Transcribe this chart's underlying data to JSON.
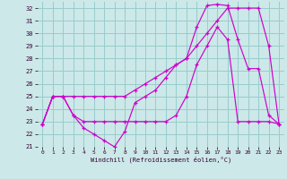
{
  "xlabel": "Windchill (Refroidissement éolien,°C)",
  "bg_color": "#cce8e8",
  "grid_color": "#99cccc",
  "line_color": "#cc00cc",
  "xlim": [
    -0.5,
    23.5
  ],
  "ylim": [
    21,
    32.5
  ],
  "yticks": [
    21,
    22,
    23,
    24,
    25,
    26,
    27,
    28,
    29,
    30,
    31,
    32
  ],
  "xticks": [
    0,
    1,
    2,
    3,
    4,
    5,
    6,
    7,
    8,
    9,
    10,
    11,
    12,
    13,
    14,
    15,
    16,
    17,
    18,
    19,
    20,
    21,
    22,
    23
  ],
  "line1_x": [
    0,
    1,
    2,
    3,
    4,
    5,
    6,
    7,
    8,
    9,
    10,
    11,
    12,
    13,
    14,
    15,
    16,
    17,
    18,
    19,
    20,
    21,
    22,
    23
  ],
  "line1_y": [
    22.8,
    25.0,
    25.0,
    23.5,
    22.5,
    22.0,
    21.5,
    21.0,
    22.2,
    24.5,
    25.0,
    25.5,
    26.5,
    27.5,
    28.0,
    30.5,
    32.2,
    32.3,
    32.2,
    29.5,
    27.2,
    27.2,
    23.5,
    22.8
  ],
  "line2_x": [
    0,
    1,
    2,
    3,
    4,
    5,
    6,
    7,
    8,
    9,
    10,
    11,
    12,
    13,
    14,
    15,
    16,
    17,
    18,
    19,
    20,
    21,
    22,
    23
  ],
  "line2_y": [
    22.8,
    25.0,
    25.0,
    25.0,
    25.0,
    25.0,
    25.0,
    25.0,
    25.0,
    25.5,
    26.0,
    26.5,
    27.0,
    27.5,
    28.0,
    29.0,
    30.0,
    31.0,
    32.0,
    32.0,
    32.0,
    32.0,
    29.0,
    22.8
  ],
  "line3_x": [
    0,
    1,
    2,
    3,
    4,
    5,
    6,
    7,
    8,
    9,
    10,
    11,
    12,
    13,
    14,
    15,
    16,
    17,
    18,
    19,
    20,
    21,
    22,
    23
  ],
  "line3_y": [
    22.8,
    25.0,
    25.0,
    23.5,
    23.0,
    23.0,
    23.0,
    23.0,
    23.0,
    23.0,
    23.0,
    23.0,
    23.0,
    23.5,
    25.0,
    27.5,
    29.0,
    30.5,
    29.5,
    23.0,
    23.0,
    23.0,
    23.0,
    22.8
  ]
}
